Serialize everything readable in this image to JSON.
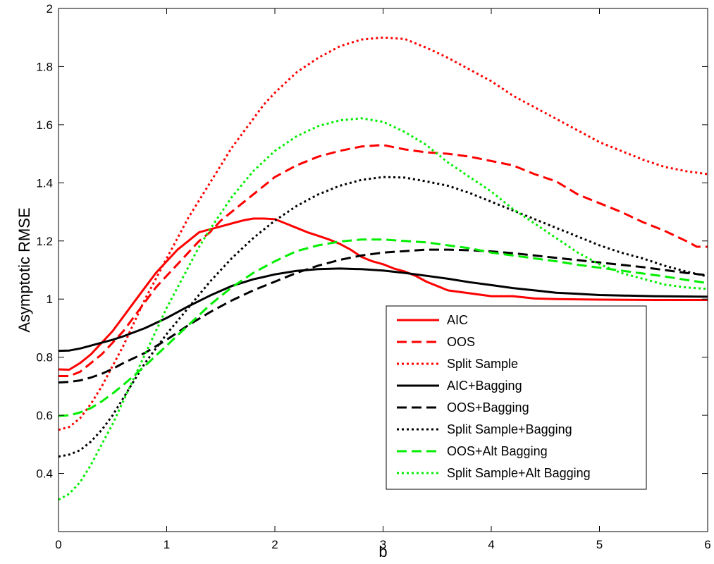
{
  "chart_data": {
    "type": "line",
    "title": "",
    "xlabel": "b",
    "ylabel": "Asymptotic RMSE",
    "xlim": [
      0,
      6
    ],
    "ylim": [
      0.2,
      2.0
    ],
    "xticks": [
      0,
      1,
      2,
      3,
      4,
      5,
      6
    ],
    "yticks": [
      0.4,
      0.6,
      0.8,
      1.0,
      1.2,
      1.4,
      1.6,
      1.8,
      2.0
    ],
    "xtick_labels": [
      "0",
      "1",
      "2",
      "3",
      "4",
      "5",
      "6"
    ],
    "ytick_labels": [
      "0.4",
      "0.6",
      "0.8",
      "1",
      "1.2",
      "1.4",
      "1.6",
      "1.8",
      "2"
    ],
    "grid": false,
    "legend_position": "bottom-right",
    "series": [
      {
        "name": "AIC",
        "color": "#ff0000",
        "dash": "solid",
        "x": [
          0,
          0.1,
          0.2,
          0.3,
          0.4,
          0.5,
          0.6,
          0.7,
          0.8,
          0.9,
          1.0,
          1.1,
          1.2,
          1.3,
          1.4,
          1.5,
          1.6,
          1.7,
          1.8,
          1.9,
          2.0,
          2.1,
          2.2,
          2.3,
          2.4,
          2.5,
          2.6,
          2.7,
          2.8,
          2.9,
          3.0,
          3.1,
          3.2,
          3.3,
          3.4,
          3.5,
          3.6,
          3.8,
          4.0,
          4.2,
          4.4,
          4.6,
          5.0,
          5.5,
          6.0
        ],
        "y": [
          0.758,
          0.757,
          0.78,
          0.81,
          0.85,
          0.89,
          0.94,
          0.99,
          1.04,
          1.09,
          1.13,
          1.17,
          1.2,
          1.23,
          1.24,
          1.25,
          1.26,
          1.27,
          1.277,
          1.277,
          1.275,
          1.26,
          1.245,
          1.23,
          1.218,
          1.205,
          1.19,
          1.17,
          1.145,
          1.13,
          1.12,
          1.105,
          1.095,
          1.08,
          1.06,
          1.045,
          1.03,
          1.02,
          1.01,
          1.01,
          1.002,
          1.0,
          0.998,
          0.997,
          0.997
        ]
      },
      {
        "name": "OOS",
        "color": "#ff0000",
        "dash": "dashed",
        "x": [
          0,
          0.1,
          0.2,
          0.3,
          0.4,
          0.5,
          0.6,
          0.7,
          0.8,
          0.9,
          1.0,
          1.1,
          1.2,
          1.3,
          1.4,
          1.5,
          1.6,
          1.7,
          1.8,
          1.9,
          2.0,
          2.2,
          2.4,
          2.6,
          2.8,
          3.0,
          3.2,
          3.4,
          3.6,
          3.8,
          4.0,
          4.2,
          4.4,
          4.6,
          4.8,
          5.0,
          5.2,
          5.4,
          5.6,
          5.8,
          5.9,
          6.0
        ],
        "y": [
          0.735,
          0.735,
          0.75,
          0.78,
          0.81,
          0.85,
          0.89,
          0.94,
          0.99,
          1.04,
          1.08,
          1.12,
          1.16,
          1.2,
          1.23,
          1.27,
          1.3,
          1.33,
          1.36,
          1.39,
          1.42,
          1.46,
          1.49,
          1.51,
          1.525,
          1.53,
          1.515,
          1.505,
          1.5,
          1.49,
          1.475,
          1.46,
          1.43,
          1.405,
          1.36,
          1.33,
          1.3,
          1.265,
          1.235,
          1.2,
          1.18,
          1.18
        ]
      },
      {
        "name": "Split Sample",
        "color": "#ff0000",
        "dash": "dotted",
        "x": [
          0,
          0.1,
          0.2,
          0.3,
          0.4,
          0.5,
          0.6,
          0.7,
          0.8,
          0.9,
          1.0,
          1.1,
          1.2,
          1.3,
          1.4,
          1.5,
          1.6,
          1.7,
          1.8,
          1.9,
          2.0,
          2.2,
          2.4,
          2.6,
          2.8,
          3.0,
          3.2,
          3.4,
          3.6,
          3.8,
          4.0,
          4.2,
          4.4,
          4.6,
          4.8,
          5.0,
          5.2,
          5.4,
          5.6,
          5.8,
          6.0
        ],
        "y": [
          0.55,
          0.56,
          0.59,
          0.64,
          0.7,
          0.77,
          0.84,
          0.92,
          1.0,
          1.07,
          1.14,
          1.21,
          1.28,
          1.34,
          1.4,
          1.46,
          1.52,
          1.57,
          1.62,
          1.67,
          1.71,
          1.78,
          1.83,
          1.87,
          1.893,
          1.9,
          1.895,
          1.865,
          1.83,
          1.79,
          1.75,
          1.7,
          1.66,
          1.62,
          1.58,
          1.54,
          1.51,
          1.48,
          1.455,
          1.44,
          1.43
        ]
      },
      {
        "name": "AIC+Bagging",
        "color": "#000000",
        "dash": "solid",
        "x": [
          0,
          0.1,
          0.2,
          0.3,
          0.4,
          0.5,
          0.6,
          0.8,
          1.0,
          1.2,
          1.4,
          1.6,
          1.8,
          2.0,
          2.2,
          2.4,
          2.6,
          2.8,
          3.0,
          3.2,
          3.4,
          3.6,
          3.8,
          4.0,
          4.2,
          4.4,
          4.6,
          4.8,
          5.0,
          5.5,
          6.0
        ],
        "y": [
          0.822,
          0.823,
          0.83,
          0.84,
          0.85,
          0.86,
          0.872,
          0.9,
          0.935,
          0.975,
          1.012,
          1.045,
          1.068,
          1.085,
          1.097,
          1.103,
          1.105,
          1.103,
          1.098,
          1.09,
          1.08,
          1.07,
          1.058,
          1.048,
          1.038,
          1.03,
          1.022,
          1.018,
          1.014,
          1.01,
          1.008
        ]
      },
      {
        "name": "OOS+Bagging",
        "color": "#000000",
        "dash": "dashed",
        "x": [
          0,
          0.1,
          0.2,
          0.3,
          0.4,
          0.5,
          0.6,
          0.8,
          1.0,
          1.2,
          1.4,
          1.6,
          1.8,
          2.0,
          2.2,
          2.4,
          2.6,
          2.8,
          3.0,
          3.2,
          3.4,
          3.6,
          3.8,
          4.0,
          4.2,
          4.4,
          4.6,
          4.8,
          5.0,
          5.2,
          5.4,
          5.6,
          5.8,
          6.0
        ],
        "y": [
          0.713,
          0.715,
          0.72,
          0.73,
          0.743,
          0.76,
          0.78,
          0.815,
          0.86,
          0.91,
          0.955,
          0.995,
          1.03,
          1.06,
          1.09,
          1.115,
          1.135,
          1.15,
          1.16,
          1.165,
          1.17,
          1.17,
          1.168,
          1.164,
          1.158,
          1.15,
          1.142,
          1.134,
          1.126,
          1.118,
          1.11,
          1.1,
          1.09,
          1.082
        ]
      },
      {
        "name": "Split Sample+Bagging",
        "color": "#000000",
        "dash": "dotted",
        "x": [
          0,
          0.1,
          0.2,
          0.3,
          0.4,
          0.5,
          0.6,
          0.7,
          0.8,
          0.9,
          1.0,
          1.2,
          1.4,
          1.6,
          1.8,
          2.0,
          2.2,
          2.4,
          2.6,
          2.8,
          3.0,
          3.2,
          3.4,
          3.6,
          3.8,
          4.0,
          4.2,
          4.4,
          4.6,
          4.8,
          5.0,
          5.2,
          5.4,
          5.6,
          5.8,
          6.0
        ],
        "y": [
          0.458,
          0.465,
          0.48,
          0.51,
          0.55,
          0.6,
          0.66,
          0.72,
          0.78,
          0.83,
          0.88,
          0.97,
          1.06,
          1.14,
          1.21,
          1.27,
          1.32,
          1.36,
          1.39,
          1.41,
          1.42,
          1.418,
          1.405,
          1.39,
          1.365,
          1.335,
          1.305,
          1.275,
          1.245,
          1.215,
          1.185,
          1.16,
          1.14,
          1.115,
          1.095,
          1.078
        ]
      },
      {
        "name": "OOS+Alt Bagging",
        "color": "#00ee00",
        "dash": "dashed",
        "x": [
          0,
          0.1,
          0.2,
          0.3,
          0.4,
          0.5,
          0.6,
          0.8,
          1.0,
          1.2,
          1.4,
          1.6,
          1.8,
          2.0,
          2.2,
          2.4,
          2.6,
          2.8,
          3.0,
          3.2,
          3.4,
          3.6,
          3.8,
          4.0,
          4.2,
          4.4,
          4.6,
          4.8,
          5.0,
          5.2,
          5.4,
          5.6,
          5.8,
          6.0
        ],
        "y": [
          0.598,
          0.6,
          0.61,
          0.625,
          0.648,
          0.675,
          0.705,
          0.77,
          0.84,
          0.91,
          0.98,
          1.04,
          1.09,
          1.13,
          1.165,
          1.185,
          1.198,
          1.205,
          1.205,
          1.2,
          1.195,
          1.185,
          1.175,
          1.16,
          1.15,
          1.14,
          1.13,
          1.118,
          1.108,
          1.098,
          1.088,
          1.078,
          1.066,
          1.055
        ]
      },
      {
        "name": "Split Sample+Alt Bagging",
        "color": "#00ee00",
        "dash": "dotted",
        "x": [
          0,
          0.1,
          0.2,
          0.3,
          0.4,
          0.5,
          0.6,
          0.7,
          0.8,
          0.9,
          1.0,
          1.1,
          1.2,
          1.3,
          1.4,
          1.6,
          1.8,
          2.0,
          2.2,
          2.4,
          2.6,
          2.8,
          3.0,
          3.2,
          3.4,
          3.6,
          3.8,
          4.0,
          4.2,
          4.4,
          4.6,
          4.8,
          5.0,
          5.2,
          5.4,
          5.6,
          5.8,
          6.0
        ],
        "y": [
          0.31,
          0.33,
          0.37,
          0.43,
          0.5,
          0.57,
          0.65,
          0.73,
          0.81,
          0.89,
          0.97,
          1.04,
          1.11,
          1.18,
          1.24,
          1.35,
          1.44,
          1.51,
          1.56,
          1.595,
          1.615,
          1.622,
          1.61,
          1.575,
          1.53,
          1.47,
          1.42,
          1.37,
          1.31,
          1.26,
          1.21,
          1.16,
          1.12,
          1.09,
          1.07,
          1.05,
          1.04,
          1.035
        ]
      }
    ]
  }
}
